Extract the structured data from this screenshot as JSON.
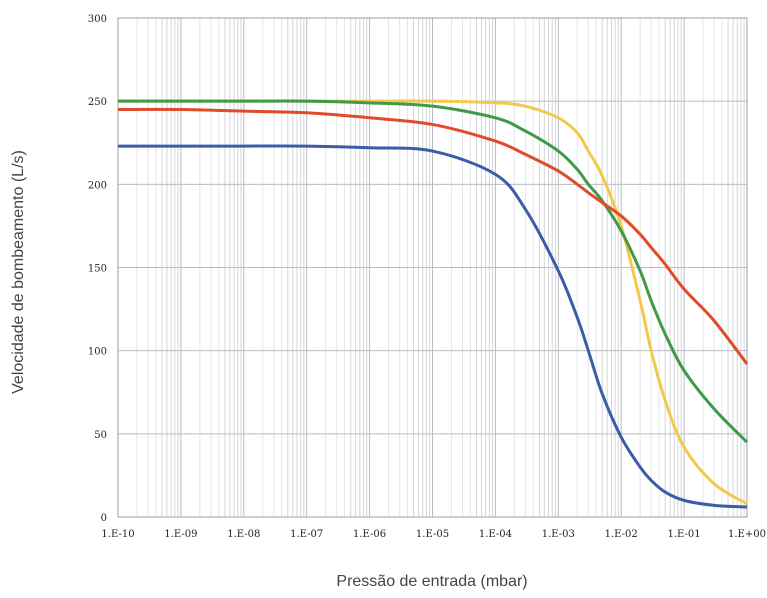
{
  "chart_data": {
    "type": "line",
    "title": "",
    "xlabel": "Pressão de entrada (mbar)",
    "ylabel": "Velocidade de bombeamento (L/s)",
    "x_scale": "log",
    "xlim": [
      1e-10,
      1
    ],
    "ylim": [
      0,
      300
    ],
    "grid": true,
    "x_tick_labels": [
      "1.E-10",
      "1.E-09",
      "1.E-08",
      "1.E-07",
      "1.E-06",
      "1.E-05",
      "1.E-04",
      "1.E-03",
      "1.E-02",
      "1.E-01",
      "1.E+00"
    ],
    "y_tick_labels": [
      "0",
      "50",
      "100",
      "150",
      "200",
      "250",
      "300"
    ],
    "x": [
      1e-10,
      1e-09,
      1e-08,
      1e-07,
      1e-06,
      1e-05,
      0.0001,
      0.0003,
      0.001,
      0.002,
      0.003,
      0.005,
      0.01,
      0.02,
      0.03,
      0.05,
      0.1,
      0.3,
      1
    ],
    "series": [
      {
        "color": "#f2c94c",
        "values": [
          250,
          250,
          250,
          250,
          250,
          250,
          249,
          247,
          240,
          231,
          220,
          205,
          175,
          130,
          100,
          70,
          42,
          20,
          8
        ]
      },
      {
        "color": "#3f9a48",
        "values": [
          250,
          250,
          250,
          250,
          249,
          247,
          240,
          232,
          220,
          209,
          200,
          190,
          172,
          148,
          130,
          110,
          88,
          65,
          45
        ]
      },
      {
        "color": "#e04b2a",
        "values": [
          245,
          245,
          244,
          243,
          240,
          236,
          226,
          218,
          208,
          200,
          195,
          189,
          181,
          170,
          162,
          152,
          137,
          118,
          92
        ]
      },
      {
        "color": "#3c5caa",
        "values": [
          223,
          223,
          223,
          223,
          222,
          220,
          206,
          185,
          148,
          120,
          100,
          74,
          48,
          30,
          22,
          15,
          10,
          7,
          6
        ]
      }
    ]
  }
}
